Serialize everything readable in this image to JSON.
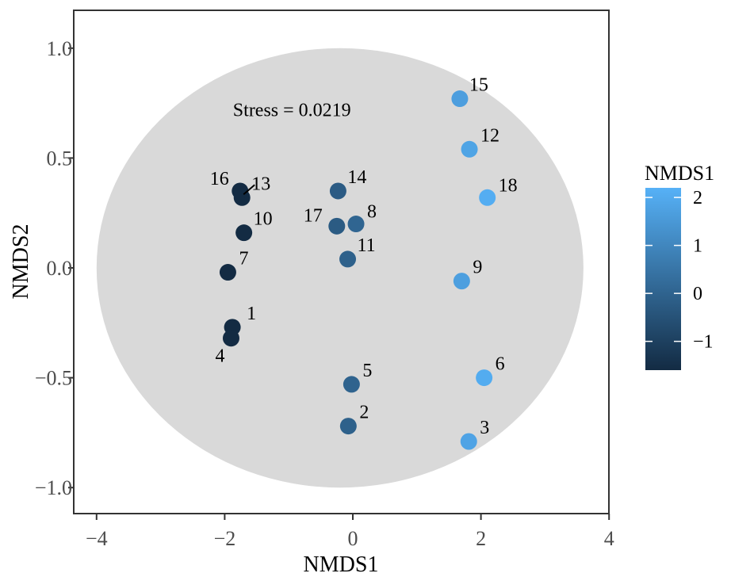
{
  "chart_data": {
    "type": "scatter",
    "xlabel": "NMDS1",
    "ylabel": "NMDS2",
    "xlim": [
      -4.4,
      4
    ],
    "ylim": [
      -1.1,
      1.15
    ],
    "xticks": [
      -4,
      -2,
      0,
      2,
      4
    ],
    "xtick_labels": [
      "−4",
      "−2",
      "0",
      "2",
      "4"
    ],
    "yticks": [
      -1.0,
      -0.5,
      0.0,
      0.5,
      1.0
    ],
    "ytick_labels": [
      "−1.0",
      "−0.5",
      "0.0",
      "0.5",
      "1.0"
    ],
    "annotation": "Stress = 0.0219",
    "annotation_pos": [
      -0.95,
      0.69
    ],
    "background_ellipse": {
      "center": [
        -0.2,
        0.0
      ],
      "rx": 3.8,
      "ry": 1.0,
      "color": "#d9d9d9"
    },
    "grid": false,
    "legend": {
      "title": "NMDS1",
      "position": "right",
      "range": [
        -1.6,
        2.2
      ],
      "ticks": [
        2,
        1,
        0,
        -1
      ],
      "tick_labels": [
        "2",
        "1",
        "0",
        "−1"
      ],
      "color_low": "#132b43",
      "color_high": "#56b1f7"
    },
    "points": [
      {
        "label": "1",
        "x": -1.88,
        "y": -0.27,
        "label_dx": 18,
        "label_dy": -10,
        "label_anchor": "start"
      },
      {
        "label": "2",
        "x": -0.07,
        "y": -0.72,
        "label_dx": 14,
        "label_dy": -10,
        "label_anchor": "start"
      },
      {
        "label": "3",
        "x": 1.81,
        "y": -0.79,
        "label_dx": 14,
        "label_dy": -10,
        "label_anchor": "start"
      },
      {
        "label": "4",
        "x": -1.9,
        "y": -0.32,
        "label_dx": -14,
        "label_dy": 30,
        "label_anchor": "middle"
      },
      {
        "label": "5",
        "x": -0.02,
        "y": -0.53,
        "label_dx": 14,
        "label_dy": -10,
        "label_anchor": "start"
      },
      {
        "label": "6",
        "x": 2.05,
        "y": -0.5,
        "label_dx": 14,
        "label_dy": -10,
        "label_anchor": "start"
      },
      {
        "label": "7",
        "x": -1.95,
        "y": -0.02,
        "label_dx": 14,
        "label_dy": -10,
        "label_anchor": "start"
      },
      {
        "label": "8",
        "x": 0.05,
        "y": 0.2,
        "label_dx": 14,
        "label_dy": -8,
        "label_anchor": "start"
      },
      {
        "label": "9",
        "x": 1.7,
        "y": -0.06,
        "label_dx": 14,
        "label_dy": -10,
        "label_anchor": "start"
      },
      {
        "label": "10",
        "x": -1.7,
        "y": 0.16,
        "label_dx": 12,
        "label_dy": -10,
        "label_anchor": "start"
      },
      {
        "label": "11",
        "x": -0.08,
        "y": 0.04,
        "label_dx": 12,
        "label_dy": -10,
        "label_anchor": "start"
      },
      {
        "label": "12",
        "x": 1.82,
        "y": 0.54,
        "label_dx": 14,
        "label_dy": -10,
        "label_anchor": "start"
      },
      {
        "label": "13",
        "x": -1.73,
        "y": 0.32,
        "label_dx": 12,
        "label_dy": -10,
        "label_anchor": "start",
        "leader": true
      },
      {
        "label": "14",
        "x": -0.23,
        "y": 0.35,
        "label_dx": 12,
        "label_dy": -10,
        "label_anchor": "start"
      },
      {
        "label": "15",
        "x": 1.67,
        "y": 0.77,
        "label_dx": 12,
        "label_dy": -10,
        "label_anchor": "start"
      },
      {
        "label": "16",
        "x": -1.76,
        "y": 0.35,
        "label_dx": -38,
        "label_dy": -8,
        "label_anchor": "start"
      },
      {
        "label": "17",
        "x": -0.25,
        "y": 0.19,
        "label_dx": -42,
        "label_dy": -6,
        "label_anchor": "start"
      },
      {
        "label": "18",
        "x": 2.1,
        "y": 0.32,
        "label_dx": 14,
        "label_dy": -8,
        "label_anchor": "start"
      }
    ]
  }
}
